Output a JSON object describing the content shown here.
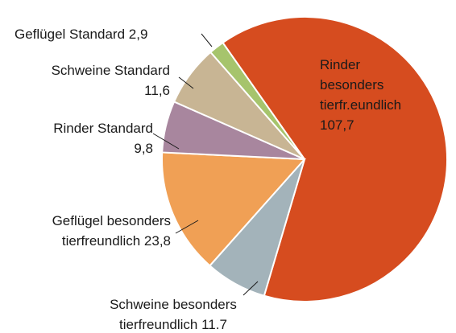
{
  "chart_data": {
    "type": "pie",
    "categories": [
      "Rinder besonders tierfr.eundlich",
      "Schweine besonders tierfreundlich",
      "Geflügel besonders tierfreundlich",
      "Rinder Standard",
      "Schweine Standard",
      "Geflügel Standard"
    ],
    "values": [
      107.7,
      11.7,
      23.8,
      9.8,
      11.6,
      2.9
    ],
    "value_labels": [
      "107,7",
      "11.7",
      "23,8",
      "9,8",
      "11,6",
      "2,9"
    ],
    "colors": [
      "#d64c1f",
      "#a3b3ba",
      "#f0a055",
      "#a8869e",
      "#c8b594",
      "#a6c46c"
    ]
  }
}
